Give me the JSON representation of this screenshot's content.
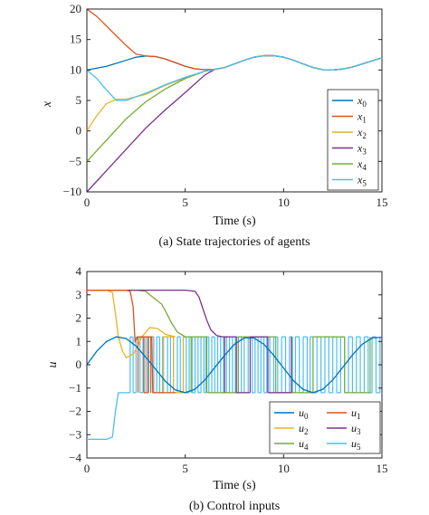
{
  "colors": {
    "series": [
      "#0072BD",
      "#D95319",
      "#EDB120",
      "#7E2F8E",
      "#77AC30",
      "#4DBEEE"
    ],
    "axis": "#222222"
  },
  "chart_data": [
    {
      "type": "line",
      "caption": "(a) State trajectories of agents",
      "xlabel": "Time (s)",
      "ylabel": "x",
      "xlim": [
        0,
        15
      ],
      "ylim": [
        -10,
        20
      ],
      "xticks": [
        0,
        5,
        10,
        15
      ],
      "yticks": [
        -10,
        -5,
        0,
        5,
        10,
        15,
        20
      ],
      "legend_position": "right",
      "series": [
        {
          "name": "x0",
          "label_base": "x",
          "label_sub": "0",
          "x": [
            0,
            1,
            2,
            2.5,
            3,
            3.5,
            4,
            4.5,
            5,
            5.5,
            6,
            6.5,
            7,
            7.5,
            8,
            8.5,
            9,
            9.5,
            10,
            10.5,
            11,
            11.5,
            12,
            12.5,
            13,
            13.5,
            14,
            14.5,
            15
          ],
          "y": [
            10,
            10.6,
            11.6,
            12.1,
            12.3,
            12.2,
            11.8,
            11.2,
            10.6,
            10.2,
            10.05,
            10.1,
            10.4,
            11,
            11.6,
            12.1,
            12.35,
            12.35,
            12.1,
            11.6,
            11,
            10.4,
            10.05,
            10,
            10.15,
            10.5,
            11,
            11.5,
            12
          ]
        },
        {
          "name": "x1",
          "label_base": "x",
          "label_sub": "1",
          "x": [
            0,
            0.5,
            1,
            1.5,
            2,
            2.5,
            3,
            3.5,
            4,
            4.5,
            5,
            5.5,
            6,
            6.5,
            7,
            7.5,
            8,
            8.5,
            9,
            9.5,
            10,
            10.5,
            11,
            11.5,
            12,
            12.5,
            13,
            13.5,
            14,
            14.5,
            15
          ],
          "y": [
            20,
            18.8,
            17.2,
            15.6,
            14,
            12.6,
            12.3,
            12.2,
            11.8,
            11.2,
            10.6,
            10.2,
            10.05,
            10.1,
            10.4,
            11,
            11.6,
            12.1,
            12.35,
            12.35,
            12.1,
            11.6,
            11,
            10.4,
            10.05,
            10,
            10.15,
            10.5,
            11,
            11.5,
            12
          ]
        },
        {
          "name": "x2",
          "label_base": "x",
          "label_sub": "2",
          "x": [
            0,
            0.5,
            1,
            1.5,
            2,
            3,
            4,
            5,
            6,
            6.5,
            7,
            7.5,
            8,
            8.5,
            9,
            9.5,
            10,
            10.5,
            11,
            11.5,
            12,
            12.5,
            13,
            13.5,
            14,
            14.5,
            15
          ],
          "y": [
            0,
            2.5,
            4.5,
            5.2,
            5.2,
            6,
            7.5,
            8.7,
            9.8,
            10.1,
            10.4,
            11,
            11.6,
            12.1,
            12.35,
            12.35,
            12.1,
            11.6,
            11,
            10.4,
            10.05,
            10,
            10.15,
            10.5,
            11,
            11.5,
            12
          ]
        },
        {
          "name": "x3",
          "label_base": "x",
          "label_sub": "3",
          "x": [
            0,
            1,
            2,
            3,
            4,
            5,
            6,
            6.5,
            7,
            7.5,
            8,
            8.5,
            9,
            9.5,
            10,
            10.5,
            11,
            11.5,
            12,
            12.5,
            13,
            13.5,
            14,
            14.5,
            15
          ],
          "y": [
            -10,
            -6.5,
            -3,
            0.5,
            3.5,
            6.3,
            9.2,
            10.1,
            10.4,
            11,
            11.6,
            12.1,
            12.35,
            12.35,
            12.1,
            11.6,
            11,
            10.4,
            10.05,
            10,
            10.15,
            10.5,
            11,
            11.5,
            12
          ]
        },
        {
          "name": "x4",
          "label_base": "x",
          "label_sub": "4",
          "x": [
            0,
            1,
            2,
            3,
            4,
            5,
            6,
            6.5,
            7,
            7.5,
            8,
            8.5,
            9,
            9.5,
            10,
            10.5,
            11,
            11.5,
            12,
            12.5,
            13,
            13.5,
            14,
            14.5,
            15
          ],
          "y": [
            -5,
            -1.5,
            2,
            4.8,
            6.9,
            8.6,
            9.8,
            10.1,
            10.4,
            11,
            11.6,
            12.1,
            12.35,
            12.35,
            12.1,
            11.6,
            11,
            10.4,
            10.05,
            10,
            10.15,
            10.5,
            11,
            11.5,
            12
          ]
        },
        {
          "name": "x5",
          "label_base": "x",
          "label_sub": "5",
          "x": [
            0,
            0.5,
            1,
            1.5,
            2,
            3,
            4,
            5,
            6,
            6.5,
            7,
            7.5,
            8,
            8.5,
            9,
            9.5,
            10,
            10.5,
            11,
            11.5,
            12,
            12.5,
            13,
            13.5,
            14,
            14.5,
            15
          ],
          "y": [
            10,
            8.6,
            6.7,
            5,
            5,
            6.2,
            7.6,
            8.8,
            9.8,
            10.1,
            10.4,
            11,
            11.6,
            12.1,
            12.35,
            12.35,
            12.1,
            11.6,
            11,
            10.4,
            10.05,
            10,
            10.15,
            10.5,
            11,
            11.5,
            12
          ]
        }
      ]
    },
    {
      "type": "line",
      "caption": "(b) Control inputs",
      "xlabel": "Time (s)",
      "ylabel": "u",
      "xlim": [
        0,
        15
      ],
      "ylim": [
        -4,
        4
      ],
      "xticks": [
        0,
        5,
        10,
        15
      ],
      "yticks": [
        -4,
        -3,
        -2,
        -1,
        0,
        1,
        2,
        3,
        4
      ],
      "legend_position": "bottom-right",
      "switching_band": [
        -1.2,
        1.2
      ],
      "series": [
        {
          "name": "u0",
          "label_base": "u",
          "label_sub": "0",
          "x": [
            0,
            0.5,
            1,
            1.5,
            2,
            2.5,
            3,
            3.5,
            4,
            4.5,
            5,
            5.5,
            6,
            6.5,
            7,
            7.5,
            8,
            8.5,
            9,
            9.5,
            10,
            10.5,
            11,
            11.5,
            12,
            12.5,
            13,
            13.5,
            14,
            14.5,
            15
          ],
          "y": [
            0,
            0.58,
            1.0,
            1.2,
            1.12,
            0.8,
            0.32,
            -0.2,
            -0.72,
            -1.08,
            -1.2,
            -1.05,
            -0.65,
            -0.12,
            0.4,
            0.88,
            1.15,
            1.15,
            0.88,
            0.4,
            -0.14,
            -0.68,
            -1.06,
            -1.2,
            -1.05,
            -0.65,
            -0.12,
            0.42,
            0.88,
            1.15,
            1.18
          ]
        },
        {
          "name": "u1",
          "label_base": "u",
          "label_sub": "1",
          "x": [
            0,
            1,
            2,
            2.2,
            2.35,
            2.45,
            2.6,
            3,
            3.3,
            3.35,
            3.5,
            4,
            4.5
          ],
          "y": [
            3.2,
            3.2,
            3.2,
            3.15,
            2.5,
            1.0,
            1.2,
            1.2,
            1.2,
            -1.2,
            -1.2,
            -1.2,
            -1.2
          ],
          "switch_x": [
            2.6,
            2.9,
            3.1,
            3.25
          ]
        },
        {
          "name": "u2",
          "label_base": "u",
          "label_sub": "2",
          "x": [
            0,
            1,
            1.3,
            1.45,
            1.6,
            1.8,
            2.0,
            2.4,
            2.8,
            3.2,
            3.6,
            4,
            4.5
          ],
          "y": [
            3.2,
            3.2,
            3.1,
            2.2,
            1.2,
            0.6,
            0.3,
            0.5,
            1.2,
            1.6,
            1.55,
            1.3,
            1.2
          ],
          "switch_x": [
            3.9,
            4.4,
            4.9
          ]
        },
        {
          "name": "u3",
          "label_base": "u",
          "label_sub": "3",
          "x": [
            0,
            1,
            2,
            3,
            4,
            5,
            5.5,
            5.7,
            5.9,
            6.1,
            6.3,
            6.6,
            6.9,
            7.2
          ],
          "y": [
            3.2,
            3.2,
            3.2,
            3.2,
            3.2,
            3.2,
            3.15,
            2.9,
            2.4,
            1.9,
            1.5,
            1.25,
            1.2,
            1.2
          ],
          "switch_x": [
            7.0,
            7.6,
            8.3,
            9.2,
            10.4
          ]
        },
        {
          "name": "u4",
          "label_base": "u",
          "label_sub": "4",
          "x": [
            0,
            1,
            2,
            2.5,
            3,
            3.2,
            3.5,
            3.8,
            4.0,
            4.3,
            4.6,
            5,
            5.3
          ],
          "y": [
            3.2,
            3.2,
            3.2,
            3.2,
            3.15,
            3.0,
            2.8,
            2.6,
            2.3,
            1.8,
            1.4,
            1.2,
            1.2
          ],
          "switch_x": [
            5.3,
            6.1,
            7.7,
            9.6,
            11.5,
            13.1,
            14.4
          ]
        },
        {
          "name": "u5",
          "label_base": "u",
          "label_sub": "5",
          "x": [
            0,
            1,
            1.3,
            1.45,
            1.6,
            1.8,
            2.0,
            2.2
          ],
          "y": [
            -3.2,
            -3.2,
            -3.1,
            -2.0,
            -1.2,
            -1.2,
            -1.2,
            -1.2
          ],
          "switch_x": [
            2.2,
            2.35,
            2.5,
            2.7,
            2.85,
            3.0,
            3.15,
            3.4,
            3.55,
            3.7,
            3.85,
            4.1,
            4.25,
            4.4,
            4.6,
            4.75,
            4.9,
            5.05,
            5.2,
            5.35,
            5.5,
            5.65,
            5.8,
            5.95,
            6.05,
            6.2,
            6.35,
            6.5,
            6.65,
            6.8,
            6.95,
            7.1,
            7.25,
            7.4,
            7.55,
            7.7,
            7.85,
            8.0,
            8.2,
            8.4,
            8.55,
            8.7,
            8.85,
            9.0,
            9.15,
            9.3,
            9.5,
            9.7,
            9.9,
            10.1,
            10.3,
            10.45,
            10.6,
            10.8,
            11.0,
            11.2,
            11.35,
            11.5,
            11.7,
            11.9,
            12.1,
            12.3,
            12.5,
            12.7,
            12.9,
            13.1,
            13.3,
            13.5,
            13.7,
            13.9,
            14.1,
            14.3,
            14.5,
            14.7,
            14.9
          ]
        }
      ]
    }
  ]
}
